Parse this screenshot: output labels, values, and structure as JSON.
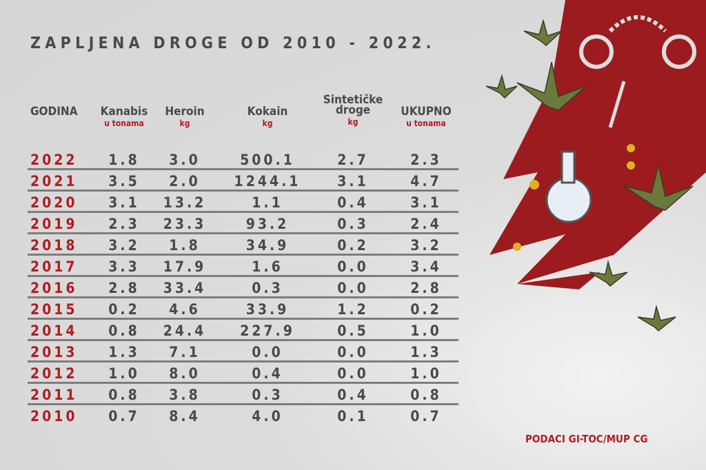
{
  "title": "ZAPLJENA DROGE OD 2010 - 2022.",
  "source": "PODACI GI-TOC/MUP CG",
  "colors": {
    "accent": "#b01c24",
    "text": "#4a4a4a",
    "background": "#d9d9d9"
  },
  "chart_data": {
    "type": "table",
    "title": "ZAPLJENA DROGE OD 2010 - 2022.",
    "columns": [
      {
        "label": "GODINA",
        "unit": ""
      },
      {
        "label": "Kanabis",
        "unit": "u tonama"
      },
      {
        "label": "Heroin",
        "unit": "kg"
      },
      {
        "label": "Kokain",
        "unit": "kg"
      },
      {
        "label": "Sintetičke droge",
        "unit": "kg"
      },
      {
        "label": "UKUPNO",
        "unit": "u tonama"
      }
    ],
    "rows": [
      [
        "2022",
        "1.8",
        "3.0",
        "500.1",
        "2.7",
        "2.3"
      ],
      [
        "2021",
        "3.5",
        "2.0",
        "1244.1",
        "3.1",
        "4.7"
      ],
      [
        "2020",
        "3.1",
        "13.2",
        "1.1",
        "0.4",
        "3.1"
      ],
      [
        "2019",
        "2.3",
        "23.3",
        "93.2",
        "0.3",
        "2.4"
      ],
      [
        "2018",
        "3.2",
        "1.8",
        "34.9",
        "0.2",
        "3.2"
      ],
      [
        "2017",
        "3.3",
        "17.9",
        "1.6",
        "0.0",
        "3.4"
      ],
      [
        "2016",
        "2.8",
        "33.4",
        "0.3",
        "0.0",
        "2.8"
      ],
      [
        "2015",
        "0.2",
        "4.6",
        "33.9",
        "1.2",
        "0.2"
      ],
      [
        "2014",
        "0.8",
        "24.4",
        "227.9",
        "0.5",
        "1.0"
      ],
      [
        "2013",
        "1.3",
        "7.1",
        "0.0",
        "0.0",
        "1.3"
      ],
      [
        "2012",
        "1.0",
        "8.0",
        "0.4",
        "0.0",
        "1.0"
      ],
      [
        "2011",
        "0.8",
        "3.8",
        "0.3",
        "0.4",
        "0.8"
      ],
      [
        "2010",
        "0.7",
        "8.4",
        "4.0",
        "0.1",
        "0.7"
      ]
    ]
  }
}
